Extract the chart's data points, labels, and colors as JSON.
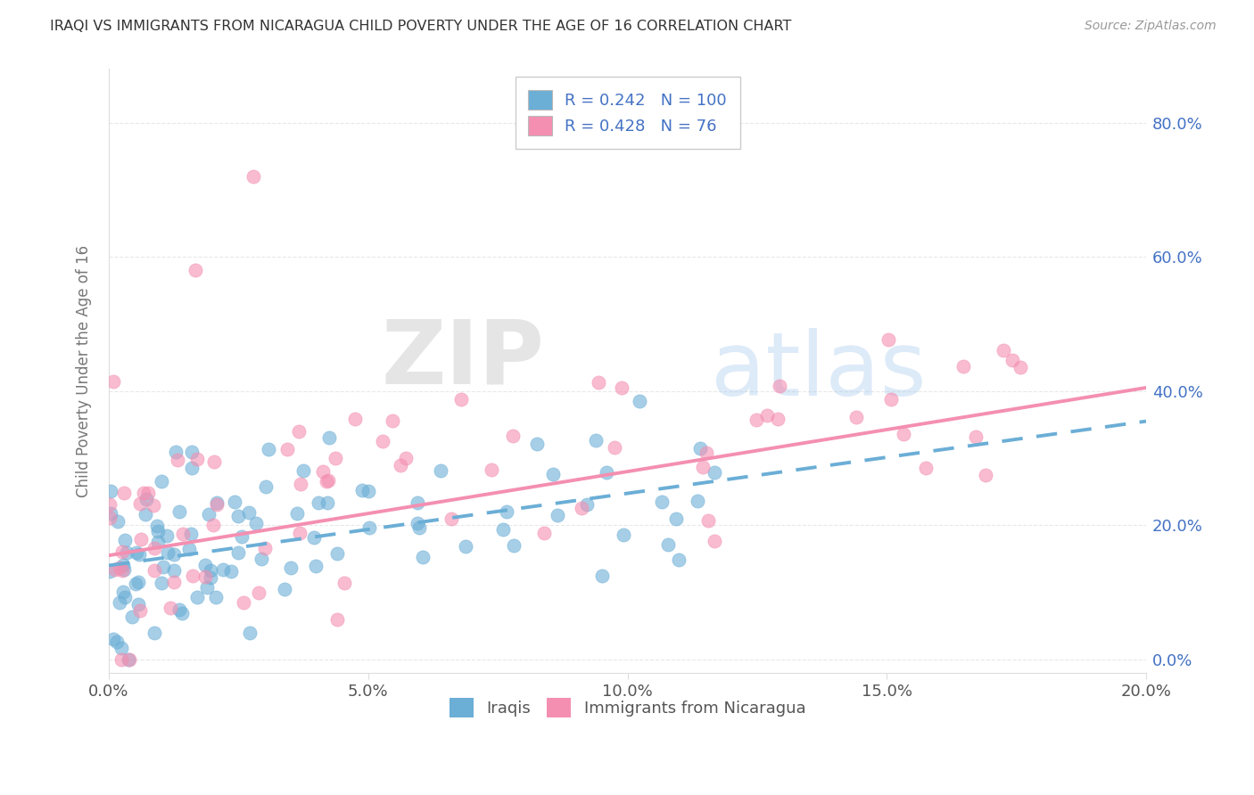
{
  "title": "IRAQI VS IMMIGRANTS FROM NICARAGUA CHILD POVERTY UNDER THE AGE OF 16 CORRELATION CHART",
  "source": "Source: ZipAtlas.com",
  "ylabel": "Child Poverty Under the Age of 16",
  "xlim": [
    0.0,
    0.2
  ],
  "ylim": [
    -0.02,
    0.88
  ],
  "xticks": [
    0.0,
    0.05,
    0.1,
    0.15,
    0.2
  ],
  "yticks": [
    0.0,
    0.2,
    0.4,
    0.6,
    0.8
  ],
  "xticklabels": [
    "0.0%",
    "5.0%",
    "10.0%",
    "15.0%",
    "20.0%"
  ],
  "yticklabels": [
    "0.0%",
    "20.0%",
    "40.0%",
    "60.0%",
    "80.0%"
  ],
  "iraqi_color": "#6BAED6",
  "nicaragua_color": "#F48FB1",
  "legend_iraqi_R": "0.242",
  "legend_iraqi_N": "100",
  "legend_nicaragua_R": "0.428",
  "legend_nicaragua_N": "76",
  "watermark_zip": "ZIP",
  "watermark_atlas": "atlas",
  "iraqi_N": 100,
  "nicaragua_N": 76,
  "iraqi_line_x0": 0.0,
  "iraqi_line_y0": 0.14,
  "iraqi_line_x1": 0.2,
  "iraqi_line_y1": 0.355,
  "nica_line_x0": 0.0,
  "nica_line_y0": 0.155,
  "nica_line_x1": 0.2,
  "nica_line_y1": 0.405,
  "background_color": "#FFFFFF",
  "grid_color": "#E8E8E8",
  "tick_label_color": "#4472C4",
  "ylabel_color": "#777777",
  "title_color": "#333333",
  "source_color": "#999999"
}
